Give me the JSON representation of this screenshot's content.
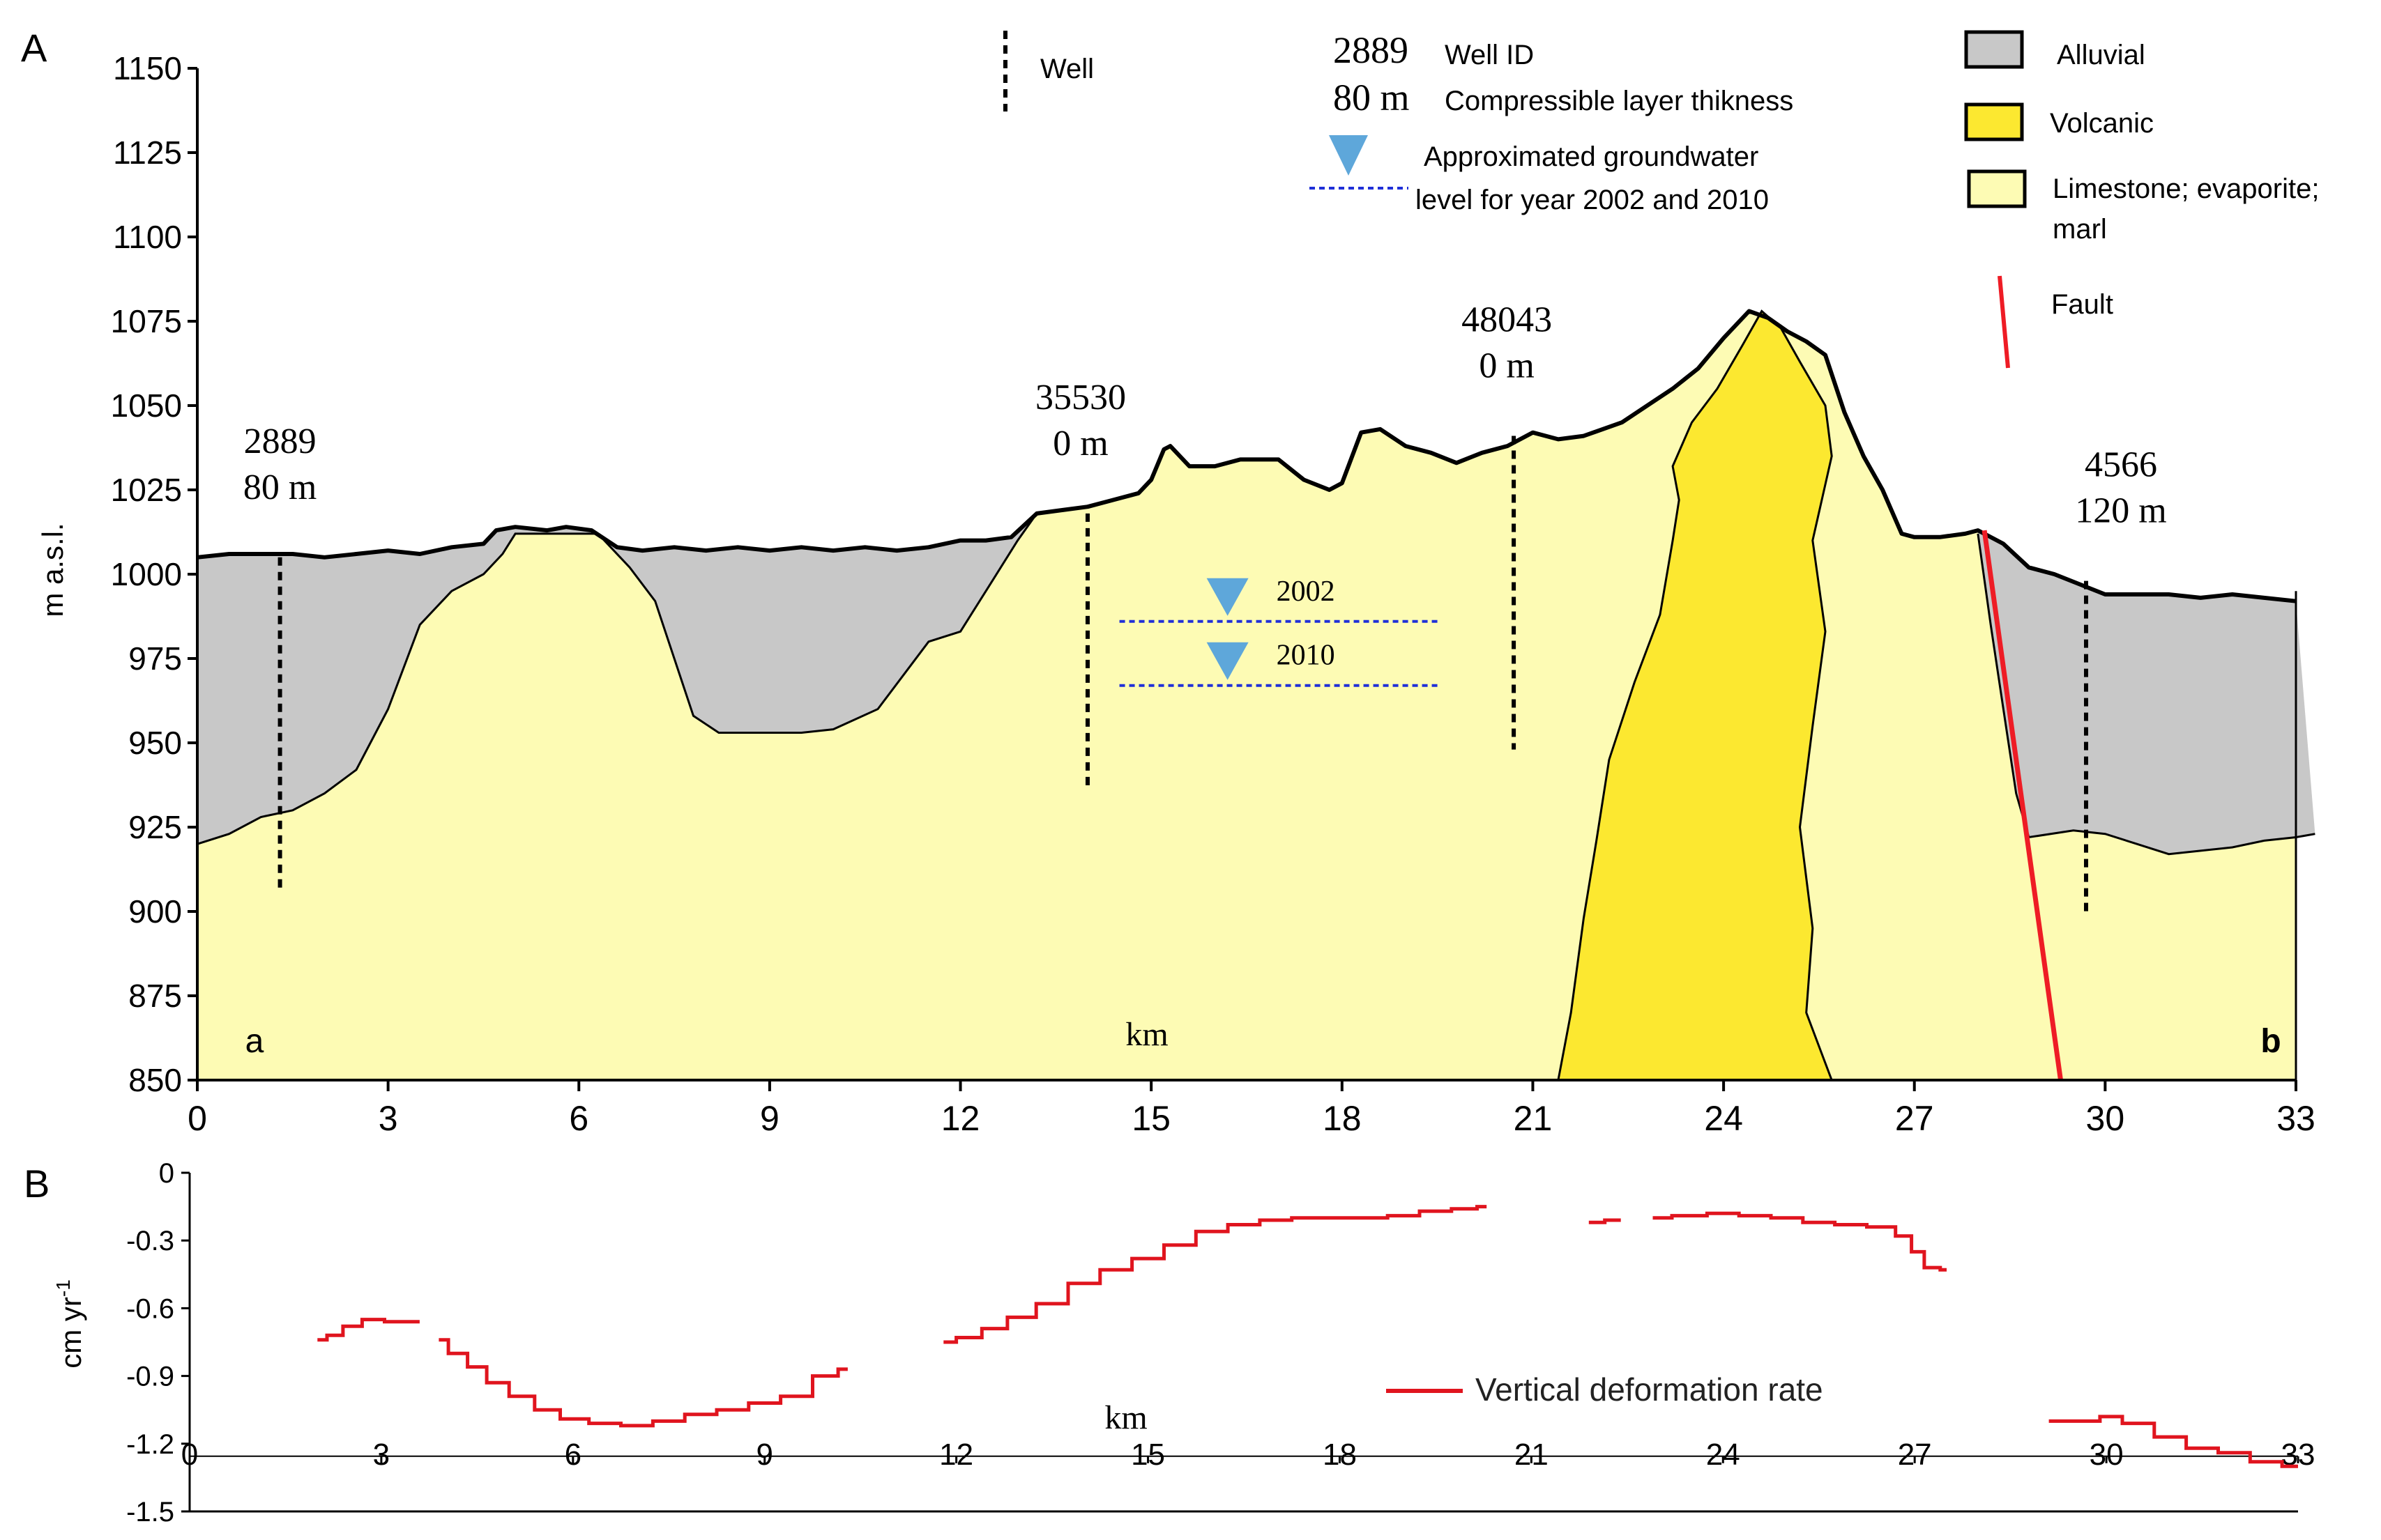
{
  "chart_data": [
    {
      "panel_label": "A",
      "type": "area",
      "xlabel": "km",
      "ylabel": "m  a.s.l.",
      "xlim": [
        0,
        33
      ],
      "ylim": [
        850,
        1150
      ],
      "xticks": [
        "0",
        "3",
        "6",
        "9",
        "12",
        "15",
        "18",
        "21",
        "24",
        "27",
        "30",
        "33"
      ],
      "yticks": [
        "850",
        "875",
        "900",
        "925",
        "950",
        "975",
        "1000",
        "1025",
        "1050",
        "1075",
        "1100",
        "1125",
        "1150"
      ],
      "end_labels": {
        "left": "a",
        "right": "b"
      },
      "colors": {
        "alluvial": "#c8c8c8",
        "volcanic": "#fce830",
        "limestone": "#fdfbb4",
        "fault": "#ee1c25",
        "water_marker": "#5ea7da",
        "water_line": "#1f2fd8"
      },
      "surface": [
        [
          0,
          1005
        ],
        [
          0.5,
          1006
        ],
        [
          1,
          1006
        ],
        [
          1.5,
          1006
        ],
        [
          2,
          1005
        ],
        [
          2.5,
          1006
        ],
        [
          3,
          1007
        ],
        [
          3.5,
          1006
        ],
        [
          4,
          1008
        ],
        [
          4.5,
          1009
        ],
        [
          4.7,
          1013
        ],
        [
          5,
          1014
        ],
        [
          5.5,
          1013
        ],
        [
          5.8,
          1014
        ],
        [
          6.2,
          1013
        ],
        [
          6.6,
          1008
        ],
        [
          7,
          1007
        ],
        [
          7.5,
          1008
        ],
        [
          8,
          1007
        ],
        [
          8.5,
          1008
        ],
        [
          9,
          1007
        ],
        [
          9.5,
          1008
        ],
        [
          10,
          1007
        ],
        [
          10.5,
          1008
        ],
        [
          11,
          1007
        ],
        [
          11.5,
          1008
        ],
        [
          12,
          1010
        ],
        [
          12.4,
          1010
        ],
        [
          12.8,
          1011
        ],
        [
          13.2,
          1018
        ],
        [
          13.6,
          1019
        ],
        [
          14,
          1020
        ],
        [
          14.4,
          1022
        ],
        [
          14.8,
          1024
        ],
        [
          15,
          1028
        ],
        [
          15.2,
          1037
        ],
        [
          15.3,
          1038
        ],
        [
          15.6,
          1032
        ],
        [
          16,
          1032
        ],
        [
          16.4,
          1034
        ],
        [
          17,
          1034
        ],
        [
          17.4,
          1028
        ],
        [
          17.8,
          1025
        ],
        [
          18,
          1027
        ],
        [
          18.3,
          1042
        ],
        [
          18.6,
          1043
        ],
        [
          19,
          1038
        ],
        [
          19.4,
          1036
        ],
        [
          19.8,
          1033
        ],
        [
          20.2,
          1036
        ],
        [
          20.6,
          1038
        ],
        [
          21,
          1042
        ],
        [
          21.4,
          1040
        ],
        [
          21.8,
          1041
        ],
        [
          22.4,
          1045
        ],
        [
          22.8,
          1050
        ],
        [
          23.2,
          1055
        ],
        [
          23.6,
          1061
        ],
        [
          24,
          1070
        ],
        [
          24.4,
          1078
        ],
        [
          24.7,
          1076
        ],
        [
          25,
          1072
        ],
        [
          25.3,
          1069
        ],
        [
          25.6,
          1065
        ],
        [
          25.9,
          1048
        ],
        [
          26.2,
          1035
        ],
        [
          26.5,
          1025
        ],
        [
          26.8,
          1012
        ],
        [
          27,
          1011
        ],
        [
          27.4,
          1011
        ],
        [
          27.8,
          1012
        ],
        [
          28,
          1013
        ],
        [
          28.4,
          1009
        ],
        [
          28.8,
          1002
        ],
        [
          29.2,
          1000
        ],
        [
          29.6,
          997
        ],
        [
          30,
          994
        ],
        [
          30.5,
          994
        ],
        [
          31,
          994
        ],
        [
          31.5,
          993
        ],
        [
          32,
          994
        ],
        [
          32.5,
          993
        ],
        [
          33,
          992
        ]
      ],
      "alluvial_base": [
        [
          0,
          920
        ],
        [
          0.5,
          923
        ],
        [
          1,
          928
        ],
        [
          1.5,
          930
        ],
        [
          2,
          935
        ],
        [
          2.5,
          942
        ],
        [
          3,
          960
        ],
        [
          3.5,
          985
        ],
        [
          4,
          995
        ],
        [
          4.5,
          1000
        ],
        [
          4.8,
          1006
        ],
        [
          5,
          1012
        ],
        [
          6.3,
          1012
        ],
        [
          6.8,
          1002
        ],
        [
          7.2,
          992
        ],
        [
          7.5,
          975
        ],
        [
          7.8,
          958
        ],
        [
          8.2,
          953
        ],
        [
          8.8,
          953
        ],
        [
          9.5,
          953
        ],
        [
          10,
          954
        ],
        [
          10.7,
          960
        ],
        [
          11.5,
          980
        ],
        [
          12,
          983
        ],
        [
          12.5,
          998
        ],
        [
          12.9,
          1010
        ],
        [
          13.2,
          1018
        ]
      ],
      "alluvial_right_base": [
        [
          28,
          1012
        ],
        [
          28.2,
          985
        ],
        [
          28.4,
          960
        ],
        [
          28.6,
          935
        ],
        [
          28.8,
          922
        ],
        [
          29.5,
          924
        ],
        [
          30,
          923
        ],
        [
          30.5,
          920
        ],
        [
          31,
          917
        ],
        [
          31.5,
          918
        ],
        [
          32,
          919
        ],
        [
          32.5,
          921
        ],
        [
          33,
          922
        ],
        [
          33.3,
          923
        ]
      ],
      "volcanic": [
        [
          21.4,
          850
        ],
        [
          21.6,
          870
        ],
        [
          21.8,
          898
        ],
        [
          22,
          921
        ],
        [
          22.2,
          945
        ],
        [
          22.6,
          968
        ],
        [
          23,
          988
        ],
        [
          23.2,
          1010
        ],
        [
          23.3,
          1022
        ],
        [
          23.2,
          1032
        ],
        [
          23.5,
          1045
        ],
        [
          23.9,
          1055
        ],
        [
          24.3,
          1068
        ],
        [
          24.6,
          1078
        ],
        [
          24.9,
          1073
        ],
        [
          25.2,
          1063
        ],
        [
          25.6,
          1050
        ],
        [
          25.7,
          1035
        ],
        [
          25.4,
          1010
        ],
        [
          25.6,
          983
        ],
        [
          25.4,
          955
        ],
        [
          25.2,
          925
        ],
        [
          25.4,
          895
        ],
        [
          25.3,
          870
        ],
        [
          25.7,
          850
        ]
      ],
      "fault": [
        [
          28.1,
          1013
        ],
        [
          29.3,
          850
        ]
      ],
      "wells": [
        {
          "x": 1.3,
          "top": 1005,
          "bottom": 907,
          "id": "2889",
          "thickness": "80 m"
        },
        {
          "x": 14.0,
          "top": 1018,
          "bottom": 936,
          "id": "35530",
          "thickness": "0  m"
        },
        {
          "x": 20.7,
          "top": 1041,
          "bottom": 948,
          "id": "48043",
          "thickness": "0 m"
        },
        {
          "x": 29.7,
          "top": 998,
          "bottom": 899,
          "id": "4566",
          "thickness": "120 m"
        }
      ],
      "groundwater": [
        {
          "year": "2002",
          "level": 986,
          "x_start": 14.5,
          "x_end": 19.5
        },
        {
          "year": "2010",
          "level": 967,
          "x_start": 14.5,
          "x_end": 19.5
        }
      ],
      "legend": {
        "well_label": "Well",
        "well_id_example": "2889",
        "well_id_label": "Well ID",
        "thickness_example": "80 m",
        "thickness_label": "Compressible layer thikness",
        "groundwater_line1": "Approximated groundwater",
        "groundwater_line2": "level for year 2002 and 2010",
        "alluvial": "Alluvial",
        "volcanic": "Volcanic",
        "limestone_line1": "Limestone; evaporite;",
        "limestone_line2": "marl",
        "fault": "Fault"
      }
    },
    {
      "panel_label": "B",
      "type": "line",
      "xlabel": "km",
      "ylabel_main": "cm  yr",
      "ylabel_sup": "-1",
      "xlim": [
        0,
        33
      ],
      "ylim": [
        -1.5,
        0
      ],
      "xticks": [
        "0",
        "3",
        "6",
        "9",
        "12",
        "15",
        "18",
        "21",
        "24",
        "27",
        "30",
        "33"
      ],
      "yticks": [
        "0",
        "-0.3",
        "-0.6",
        "-0.9",
        "-1.2",
        "-1.5"
      ],
      "series": [
        {
          "name": "Vertical deformation rate",
          "color": "#e0141e",
          "segments": [
            [
              [
                2.0,
                -0.74
              ],
              [
                2.3,
                -0.72
              ],
              [
                2.5,
                -0.68
              ],
              [
                2.9,
                -0.65
              ],
              [
                3.2,
                -0.66
              ],
              [
                3.6,
                -0.66
              ]
            ],
            [
              [
                3.9,
                -0.74
              ],
              [
                4.2,
                -0.8
              ],
              [
                4.5,
                -0.86
              ],
              [
                4.8,
                -0.93
              ],
              [
                5.2,
                -0.99
              ],
              [
                5.6,
                -1.05
              ],
              [
                6.0,
                -1.09
              ],
              [
                6.5,
                -1.11
              ],
              [
                7.0,
                -1.12
              ],
              [
                7.5,
                -1.1
              ],
              [
                8.0,
                -1.07
              ],
              [
                8.5,
                -1.05
              ],
              [
                9.0,
                -1.02
              ],
              [
                9.5,
                -0.99
              ],
              [
                10.0,
                -0.9
              ],
              [
                10.3,
                -0.87
              ]
            ],
            [
              [
                11.8,
                -0.75
              ],
              [
                12.2,
                -0.73
              ],
              [
                12.6,
                -0.69
              ],
              [
                13.0,
                -0.64
              ],
              [
                13.5,
                -0.58
              ],
              [
                14.0,
                -0.49
              ],
              [
                14.5,
                -0.43
              ],
              [
                15.0,
                -0.38
              ],
              [
                15.5,
                -0.32
              ],
              [
                16.0,
                -0.26
              ],
              [
                16.5,
                -0.23
              ],
              [
                17.0,
                -0.21
              ],
              [
                17.5,
                -0.2
              ],
              [
                18.0,
                -0.2
              ],
              [
                18.5,
                -0.2
              ],
              [
                19.0,
                -0.19
              ],
              [
                19.5,
                -0.17
              ],
              [
                20.0,
                -0.16
              ],
              [
                20.3,
                -0.15
              ]
            ],
            [
              [
                21.9,
                -0.22
              ],
              [
                22.4,
                -0.21
              ]
            ],
            [
              [
                22.9,
                -0.2
              ],
              [
                23.5,
                -0.19
              ],
              [
                24.0,
                -0.18
              ],
              [
                24.5,
                -0.19
              ],
              [
                25.0,
                -0.2
              ],
              [
                25.5,
                -0.22
              ],
              [
                26.0,
                -0.23
              ],
              [
                26.5,
                -0.24
              ],
              [
                26.9,
                -0.28
              ],
              [
                27.0,
                -0.35
              ],
              [
                27.3,
                -0.42
              ],
              [
                27.5,
                -0.43
              ]
            ],
            [
              [
                29.1,
                -1.1
              ],
              [
                29.5,
                -1.1
              ],
              [
                29.8,
                -1.1
              ],
              [
                30.0,
                -1.08
              ],
              [
                30.5,
                -1.11
              ],
              [
                31.0,
                -1.17
              ],
              [
                31.5,
                -1.22
              ],
              [
                32.0,
                -1.24
              ],
              [
                32.5,
                -1.28
              ],
              [
                33.0,
                -1.3
              ]
            ]
          ]
        }
      ],
      "legend_label": "Vertical deformation rate"
    }
  ]
}
